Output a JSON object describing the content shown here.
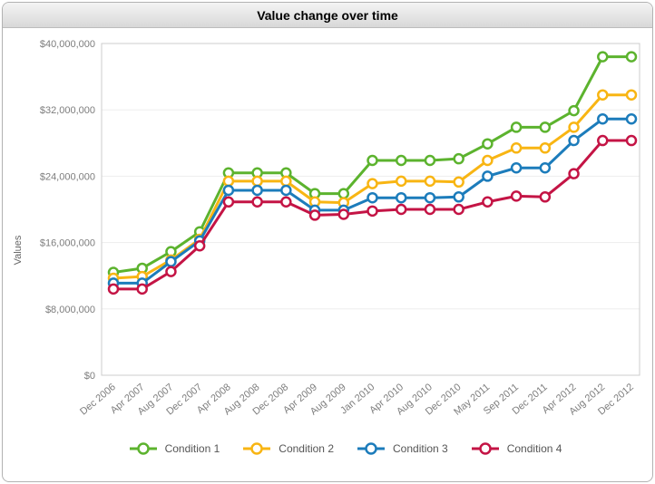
{
  "window": {
    "title": "Value change over time"
  },
  "chart_data": {
    "type": "line",
    "title": "Value change over time",
    "xlabel": "",
    "ylabel": "Values",
    "ylim": [
      0,
      40000000
    ],
    "ytick_values": [
      0,
      8000000,
      16000000,
      24000000,
      32000000,
      40000000
    ],
    "ytick_labels": [
      "$0",
      "$8,000,000",
      "$16,000,000",
      "$24,000,000",
      "$32,000,000",
      "$40,000,000"
    ],
    "grid": "horizontal-faint",
    "legend_position": "bottom",
    "marker": "open-circle",
    "categories": [
      "Dec 2006",
      "Apr 2007",
      "Aug 2007",
      "Dec 2007",
      "Apr 2008",
      "Aug 2008",
      "Dec 2008",
      "Apr 2009",
      "Aug 2009",
      "Jan 2010",
      "Apr 2010",
      "Aug 2010",
      "Dec 2010",
      "May 2011",
      "Sep 2011",
      "Dec 2011",
      "Apr 2012",
      "Aug 2012",
      "Dec 2012"
    ],
    "series": [
      {
        "name": "Condition 1",
        "color": "#5cb32e",
        "values": [
          12400000,
          12900000,
          14900000,
          17300000,
          24400000,
          24400000,
          24400000,
          21900000,
          21900000,
          25900000,
          25900000,
          25900000,
          26100000,
          27900000,
          29900000,
          29900000,
          31900000,
          38400000,
          38400000
        ]
      },
      {
        "name": "Condition 2",
        "color": "#f8b513",
        "values": [
          11700000,
          11900000,
          13900000,
          16400000,
          23400000,
          23400000,
          23400000,
          20900000,
          20800000,
          23100000,
          23400000,
          23400000,
          23300000,
          25900000,
          27400000,
          27400000,
          29900000,
          33800000,
          33800000
        ]
      },
      {
        "name": "Condition 3",
        "color": "#1c7cbb",
        "values": [
          11100000,
          11100000,
          13700000,
          16200000,
          22300000,
          22300000,
          22300000,
          19900000,
          19900000,
          21400000,
          21400000,
          21400000,
          21500000,
          24000000,
          25000000,
          25000000,
          28300000,
          30900000,
          30900000
        ]
      },
      {
        "name": "Condition 4",
        "color": "#c41445",
        "values": [
          10400000,
          10400000,
          12500000,
          15600000,
          20900000,
          20900000,
          20900000,
          19300000,
          19400000,
          19800000,
          20000000,
          20000000,
          20000000,
          20900000,
          21600000,
          21500000,
          24300000,
          28300000,
          28300000
        ]
      }
    ],
    "style_colors": {
      "plot_border": "#cccccc",
      "gridline": "#ededed",
      "tick_text": "#7d7d7d",
      "axis_title_text": "#666666",
      "legend_text": "#555555"
    }
  }
}
